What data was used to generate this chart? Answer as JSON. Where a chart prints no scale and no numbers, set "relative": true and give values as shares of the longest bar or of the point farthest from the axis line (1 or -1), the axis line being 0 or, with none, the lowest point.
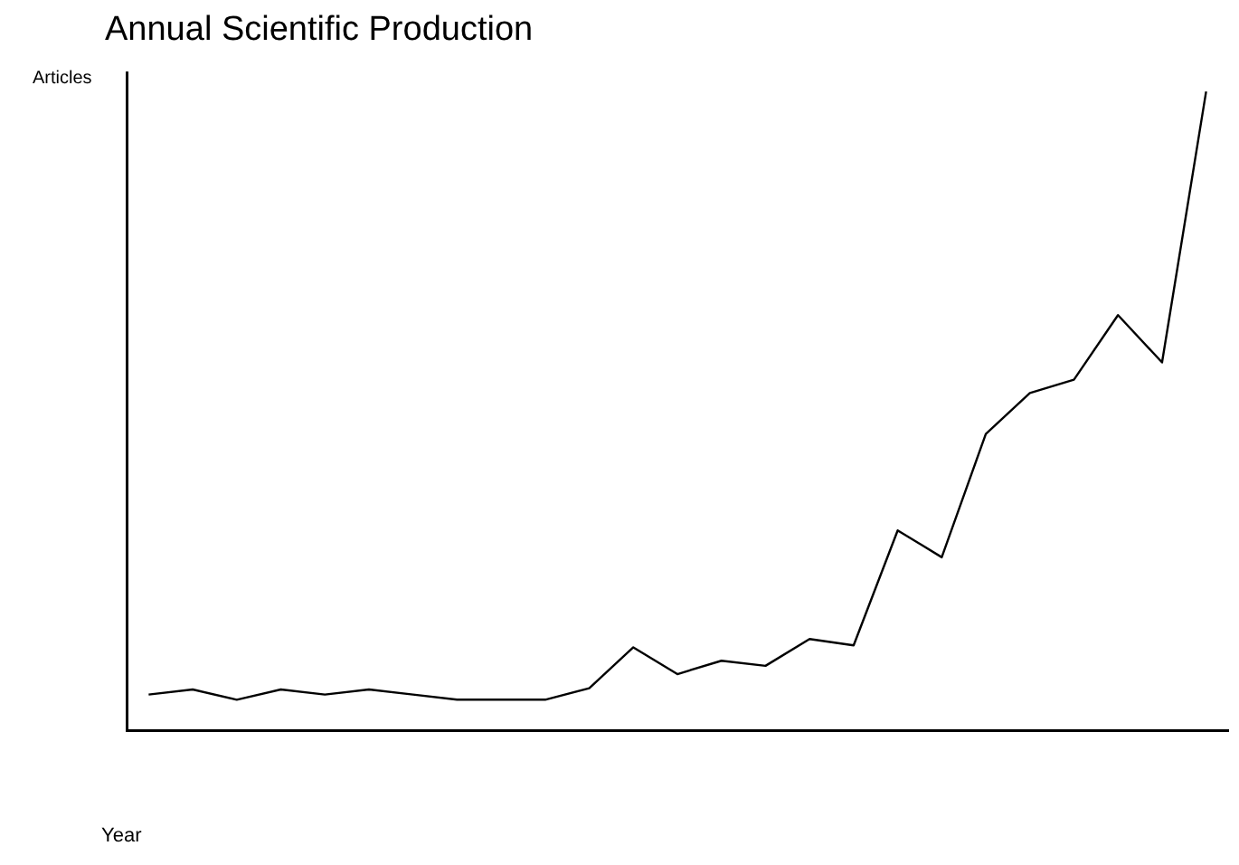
{
  "chart_data": {
    "type": "line",
    "title": "Annual Scientific Production",
    "xlabel": "Year",
    "ylabel": "Articles",
    "relative": true,
    "categories": [
      null,
      null,
      null,
      null,
      null,
      null,
      null,
      null,
      null,
      null,
      null,
      null,
      null,
      null,
      null,
      null,
      null,
      null,
      null,
      null,
      null,
      null,
      null,
      null,
      null
    ],
    "series": [
      {
        "color": "#000000",
        "values": [
          0.056,
          0.064,
          0.048,
          0.064,
          0.056,
          0.064,
          0.056,
          0.048,
          0.048,
          0.048,
          0.066,
          0.13,
          0.088,
          0.109,
          0.101,
          0.143,
          0.133,
          0.313,
          0.271,
          0.464,
          0.528,
          0.549,
          0.65,
          0.576,
          1
        ]
      }
    ],
    "grid": false,
    "legend": false,
    "marker": "none",
    "line_style": "solid"
  }
}
